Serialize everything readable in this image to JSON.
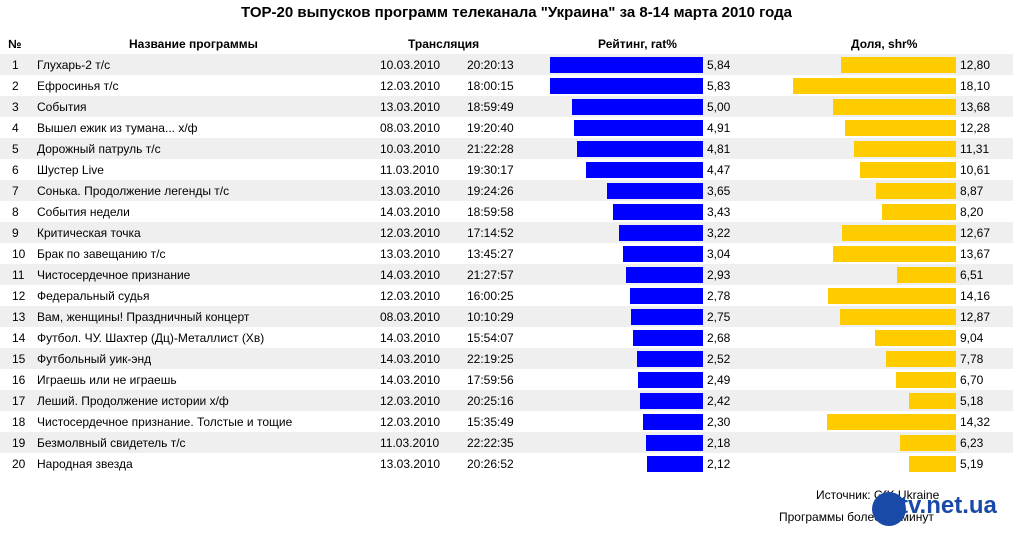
{
  "chart_data": {
    "type": "table",
    "title": "TOP-20 выпусков программ телеканала \"Украина\" за 8-14 марта 2010 года",
    "columns": {
      "num": "№",
      "name": "Название программы",
      "broadcast": "Трансляция",
      "rating": "Рейтинг, rat%",
      "share": "Доля, shr%"
    },
    "rating_max": 5.84,
    "share_max": 18.1,
    "rows": [
      {
        "num": "1",
        "name": "Глухарь-2 т/с",
        "date": "10.03.2010",
        "time": "20:20:13",
        "rating": 5.84,
        "rating_label": "5,84",
        "share": 12.8,
        "share_label": "12,80"
      },
      {
        "num": "2",
        "name": "Ефросинья т/с",
        "date": "12.03.2010",
        "time": "18:00:15",
        "rating": 5.83,
        "rating_label": "5,83",
        "share": 18.1,
        "share_label": "18,10"
      },
      {
        "num": "3",
        "name": "События",
        "date": "13.03.2010",
        "time": "18:59:49",
        "rating": 5.0,
        "rating_label": "5,00",
        "share": 13.68,
        "share_label": "13,68"
      },
      {
        "num": "4",
        "name": "Вышел ежик из тумана... х/ф",
        "date": "08.03.2010",
        "time": "19:20:40",
        "rating": 4.91,
        "rating_label": "4,91",
        "share": 12.28,
        "share_label": "12,28"
      },
      {
        "num": "5",
        "name": "Дорожный патруль т/с",
        "date": "10.03.2010",
        "time": "21:22:28",
        "rating": 4.81,
        "rating_label": "4,81",
        "share": 11.31,
        "share_label": "11,31"
      },
      {
        "num": "6",
        "name": "Шустер Live",
        "date": "11.03.2010",
        "time": "19:30:17",
        "rating": 4.47,
        "rating_label": "4,47",
        "share": 10.61,
        "share_label": "10,61"
      },
      {
        "num": "7",
        "name": "Сонька. Продолжение легенды т/с",
        "date": "13.03.2010",
        "time": "19:24:26",
        "rating": 3.65,
        "rating_label": "3,65",
        "share": 8.87,
        "share_label": "8,87"
      },
      {
        "num": "8",
        "name": "События недели",
        "date": "14.03.2010",
        "time": "18:59:58",
        "rating": 3.43,
        "rating_label": "3,43",
        "share": 8.2,
        "share_label": "8,20"
      },
      {
        "num": "9",
        "name": "Критическая точка",
        "date": "12.03.2010",
        "time": "17:14:52",
        "rating": 3.22,
        "rating_label": "3,22",
        "share": 12.67,
        "share_label": "12,67"
      },
      {
        "num": "10",
        "name": "Брак по завещанию т/с",
        "date": "13.03.2010",
        "time": "13:45:27",
        "rating": 3.04,
        "rating_label": "3,04",
        "share": 13.67,
        "share_label": "13,67"
      },
      {
        "num": "11",
        "name": "Чистосердечное признание",
        "date": "14.03.2010",
        "time": "21:27:57",
        "rating": 2.93,
        "rating_label": "2,93",
        "share": 6.51,
        "share_label": "6,51"
      },
      {
        "num": "12",
        "name": "Федеральный судья",
        "date": "12.03.2010",
        "time": "16:00:25",
        "rating": 2.78,
        "rating_label": "2,78",
        "share": 14.16,
        "share_label": "14,16"
      },
      {
        "num": "13",
        "name": "Вам, женщины! Праздничный концерт",
        "date": "08.03.2010",
        "time": "10:10:29",
        "rating": 2.75,
        "rating_label": "2,75",
        "share": 12.87,
        "share_label": "12,87"
      },
      {
        "num": "14",
        "name": "Футбол. ЧУ. Шахтер (Дц)-Металлист (Хв)",
        "date": "14.03.2010",
        "time": "15:54:07",
        "rating": 2.68,
        "rating_label": "2,68",
        "share": 9.04,
        "share_label": "9,04"
      },
      {
        "num": "15",
        "name": "Футбольный уик-энд",
        "date": "14.03.2010",
        "time": "22:19:25",
        "rating": 2.52,
        "rating_label": "2,52",
        "share": 7.78,
        "share_label": "7,78"
      },
      {
        "num": "16",
        "name": "Играешь или не играешь",
        "date": "14.03.2010",
        "time": "17:59:56",
        "rating": 2.49,
        "rating_label": "2,49",
        "share": 6.7,
        "share_label": "6,70"
      },
      {
        "num": "17",
        "name": "Леший. Продолжение истории х/ф",
        "date": "12.03.2010",
        "time": "20:25:16",
        "rating": 2.42,
        "rating_label": "2,42",
        "share": 5.18,
        "share_label": "5,18"
      },
      {
        "num": "18",
        "name": "Чистосердечное признание. Толстые и тощие",
        "date": "12.03.2010",
        "time": "15:35:49",
        "rating": 2.3,
        "rating_label": "2,30",
        "share": 14.32,
        "share_label": "14,32"
      },
      {
        "num": "19",
        "name": "Безмолвный свидетель т/с",
        "date": "11.03.2010",
        "time": "22:22:35",
        "rating": 2.18,
        "rating_label": "2,18",
        "share": 6.23,
        "share_label": "6,23"
      },
      {
        "num": "20",
        "name": "Народная звезда",
        "date": "13.03.2010",
        "time": "20:26:52",
        "rating": 2.12,
        "rating_label": "2,12",
        "share": 5.19,
        "share_label": "5,19"
      }
    ],
    "colors": {
      "rating_bar": "#0000ff",
      "share_bar": "#ffcc00",
      "row_alt": "#efefef"
    }
  },
  "footer": {
    "source": "Источник: GfK Ukraine",
    "note": "Программы более 15 минут",
    "logo_text": "tv.net.ua"
  }
}
